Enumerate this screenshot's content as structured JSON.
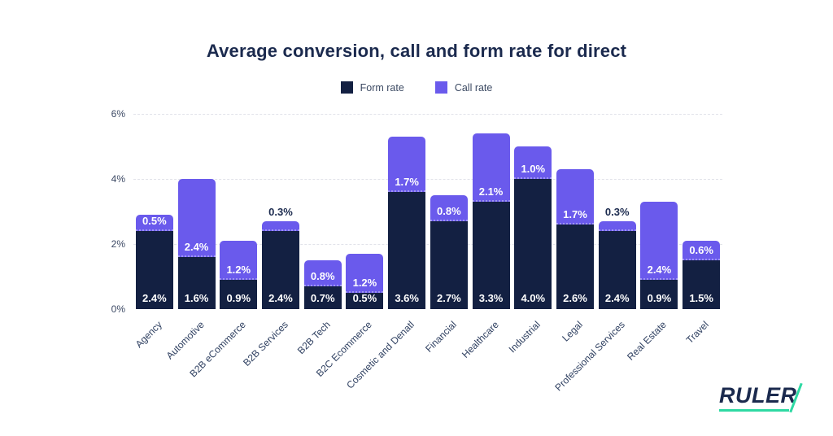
{
  "title": "Average conversion, call and form rate for direct",
  "legend": {
    "items": [
      {
        "label": "Form rate",
        "color": "#132042"
      },
      {
        "label": "Call rate",
        "color": "#6a5aec"
      }
    ]
  },
  "y_axis": {
    "ticks": [
      "0%",
      "2%",
      "4%",
      "6%"
    ],
    "max_percent": 6,
    "gridlines_at_percent": [
      2,
      4,
      6
    ]
  },
  "chart_data": {
    "type": "bar",
    "stacked": true,
    "title": "Average conversion, call and form rate for direct",
    "xlabel": "",
    "ylabel": "",
    "ylim": [
      0,
      6
    ],
    "legend_position": "top-center",
    "grid": "dashed-horizontal",
    "categories": [
      "Agency",
      "Automotive",
      "B2B eCommerce",
      "B2B Services",
      "B2B Tech",
      "B2C Ecommerce",
      "Cosmetic and Denatl",
      "Financial",
      "Healthcare",
      "Industrial",
      "Legal",
      "Professional Services",
      "Real Estate",
      "Travel"
    ],
    "series": [
      {
        "name": "Form rate",
        "color": "#132042",
        "values": [
          2.4,
          1.6,
          0.9,
          2.4,
          0.7,
          0.5,
          3.6,
          2.7,
          3.3,
          4.0,
          2.6,
          2.4,
          0.9,
          1.5
        ],
        "labels": [
          "2.4%",
          "1.6%",
          "0.9%",
          "2.4%",
          "0.7%",
          "0.5%",
          "3.6%",
          "2.7%",
          "3.3%",
          "4.0%",
          "2.6%",
          "2.4%",
          "0.9%",
          "1.5%"
        ]
      },
      {
        "name": "Call rate",
        "color": "#6a5aec",
        "values": [
          0.5,
          2.4,
          1.2,
          0.3,
          0.8,
          1.2,
          1.7,
          0.8,
          2.1,
          1.0,
          1.7,
          0.3,
          2.4,
          0.6
        ],
        "labels": [
          "0.5%",
          "2.4%",
          "1.2%",
          "0.3%",
          "0.8%",
          "1.2%",
          "1.7%",
          "0.8%",
          "2.1%",
          "1.0%",
          "1.7%",
          "0.3%",
          "2.4%",
          "0.6%"
        ],
        "label_outside": [
          false,
          false,
          false,
          true,
          false,
          false,
          false,
          false,
          false,
          false,
          false,
          true,
          false,
          false
        ]
      }
    ]
  },
  "logo": {
    "text": "RULER",
    "accent_color": "#2ed9a3",
    "text_color": "#1b2a4e"
  }
}
